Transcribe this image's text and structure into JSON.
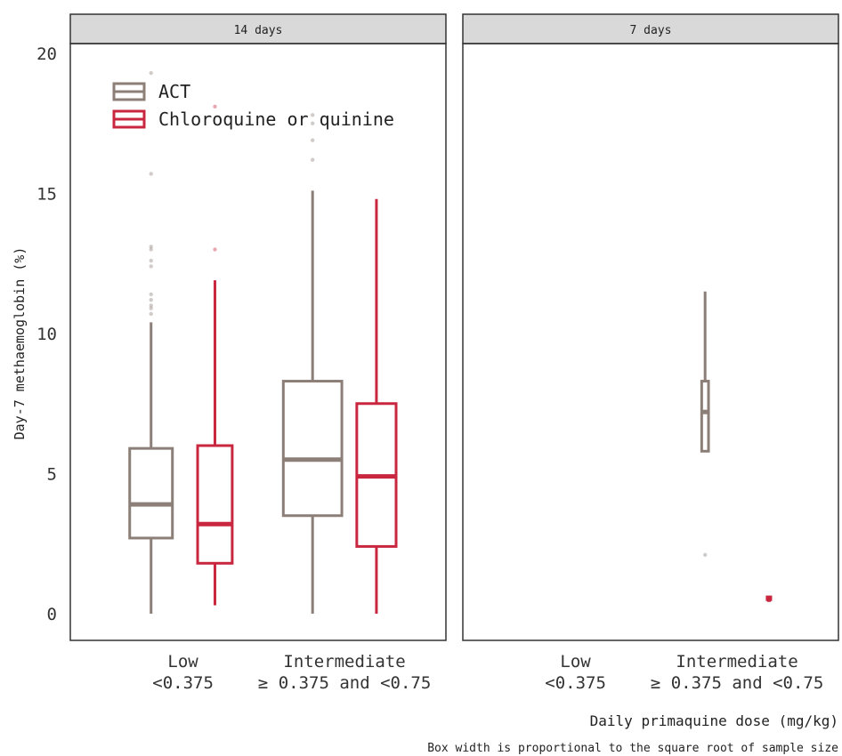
{
  "chart_data": {
    "type": "boxplot",
    "ylabel": "Day-7 methaemoglobin (%)",
    "xlabel": "Daily primaquine dose (mg/kg)",
    "caption": "Box width is proportional to the square root of sample size",
    "ylim": [
      -1,
      21
    ],
    "yticks": [
      0,
      5,
      10,
      15,
      20
    ],
    "grid": false,
    "legend_position": "top-left",
    "categories": [
      {
        "line1": "Low",
        "line2": "<0.375"
      },
      {
        "line1": "Intermediate",
        "line2": "≥ 0.375 and <0.75"
      }
    ],
    "series": [
      {
        "name": "ACT",
        "color": "#8c7f78"
      },
      {
        "name": "Chloroquine or quinine",
        "color": "#c8273f"
      }
    ],
    "facets": [
      {
        "title": "14 days",
        "boxes": [
          {
            "category": 0,
            "series": 0,
            "whisker_low": 0,
            "q1": 2.7,
            "median": 3.9,
            "q3": 5.9,
            "whisker_high": 10.4,
            "width_rel": 1.0,
            "outliers": [
              10.7,
              10.9,
              11.0,
              11.2,
              11.4,
              12.4,
              12.6,
              13.0,
              13.1,
              15.7,
              19.3
            ]
          },
          {
            "category": 0,
            "series": 1,
            "whisker_low": 0.3,
            "q1": 1.8,
            "median": 3.2,
            "q3": 6.0,
            "whisker_high": 11.9,
            "width_rel": 0.81,
            "outliers": [
              13.0,
              18.1
            ]
          },
          {
            "category": 1,
            "series": 0,
            "whisker_low": 0,
            "q1": 3.5,
            "median": 5.5,
            "q3": 8.3,
            "whisker_high": 15.1,
            "width_rel": 1.37,
            "outliers": [
              16.2,
              16.9,
              17.5,
              17.8
            ]
          },
          {
            "category": 1,
            "series": 1,
            "whisker_low": 0,
            "q1": 2.4,
            "median": 4.9,
            "q3": 7.5,
            "whisker_high": 14.8,
            "width_rel": 0.92,
            "outliers": []
          }
        ]
      },
      {
        "title": "7 days",
        "boxes": [
          {
            "category": 1,
            "series": 0,
            "whisker_low": 5.8,
            "q1": 5.8,
            "median": 7.2,
            "q3": 8.3,
            "whisker_high": 11.5,
            "width_rel": 0.16,
            "outliers": [
              2.1
            ]
          },
          {
            "category": 1,
            "series": 1,
            "whisker_low": 0.5,
            "q1": 0.5,
            "median": 0.5,
            "q3": 0.6,
            "whisker_high": 0.6,
            "width_rel": 0.04,
            "outliers": []
          }
        ]
      }
    ]
  }
}
